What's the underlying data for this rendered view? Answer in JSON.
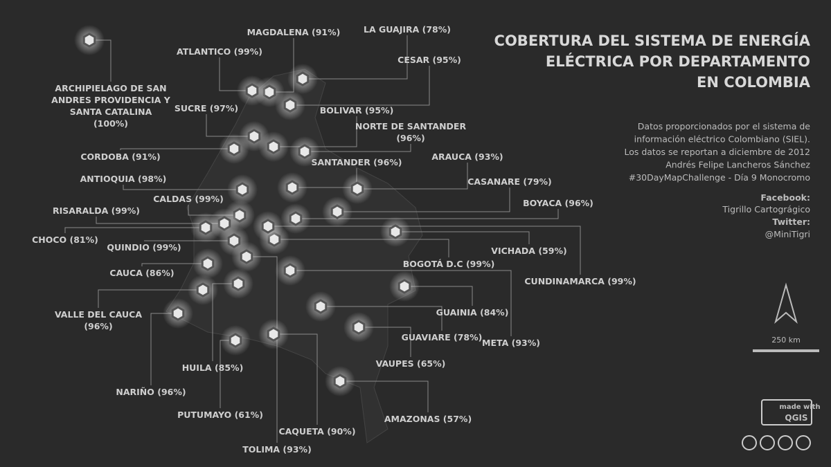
{
  "header": {
    "title_lines": [
      "COBERTURA DEL SISTEMA DE ENERGÍA",
      "ELÉCTRICA POR DEPARTAMENTO",
      "EN COLOMBIA"
    ],
    "credits": [
      "Datos proporcionados por el sistema de",
      "información eléctrico Colombiano (SIEL).",
      "Los datos se reportan a diciembre de 2012",
      "Andrés Felipe Lancheros Sánchez",
      "#30DayMapChallenge - Día 9 Monocromo"
    ],
    "facebook_label": "Facebook:",
    "facebook": "Tigrillo Cartográgico",
    "twitter_label": "Twitter:",
    "twitter": "@MiniTigri"
  },
  "scale_bar": "250 km",
  "badge": {
    "made_with": "made with",
    "qgis": "QGIS"
  },
  "departments": [
    {
      "lines": [
        "ARCHIPIELAGO DE SAN",
        "ANDRES PROVIDENCIA Y",
        "SANTA CATALINA",
        "(100%)"
      ]
    },
    {
      "lines": [
        "MAGDALENA (91%)"
      ]
    },
    {
      "lines": [
        "LA GUAJIRA (78%)"
      ]
    },
    {
      "lines": [
        "ATLANTICO (99%)"
      ]
    },
    {
      "lines": [
        "CESAR (95%)"
      ]
    },
    {
      "lines": [
        "SUCRE (97%)"
      ]
    },
    {
      "lines": [
        "BOLIVAR (95%)"
      ]
    },
    {
      "lines": [
        "NORTE DE SANTANDER",
        "(96%)"
      ]
    },
    {
      "lines": [
        "CORDOBA (91%)"
      ]
    },
    {
      "lines": [
        "SANTANDER (96%)"
      ]
    },
    {
      "lines": [
        "ARAUCA (93%)"
      ]
    },
    {
      "lines": [
        "ANTIOQUIA (98%)"
      ]
    },
    {
      "lines": [
        "CASANARE (79%)"
      ]
    },
    {
      "lines": [
        "CALDAS (99%)"
      ]
    },
    {
      "lines": [
        "BOYACA (96%)"
      ]
    },
    {
      "lines": [
        "RISARALDA (99%)"
      ]
    },
    {
      "lines": [
        "CHOCO (81%)"
      ]
    },
    {
      "lines": [
        "QUINDIO (99%)"
      ]
    },
    {
      "lines": [
        "VICHADA (59%)"
      ]
    },
    {
      "lines": [
        "BOGOTÁ D.C (99%)"
      ]
    },
    {
      "lines": [
        "CAUCA (86%)"
      ]
    },
    {
      "lines": [
        "CUNDINAMARCA (99%)"
      ]
    },
    {
      "lines": [
        "VALLE DEL CAUCA",
        "(96%)"
      ]
    },
    {
      "lines": [
        "GUAINIA (84%)"
      ]
    },
    {
      "lines": [
        "META (93%)"
      ]
    },
    {
      "lines": [
        "GUAVIARE (78%)"
      ]
    },
    {
      "lines": [
        "VAUPES (65%)"
      ]
    },
    {
      "lines": [
        "HUILA (85%)"
      ]
    },
    {
      "lines": [
        "NARIÑO (96%)"
      ]
    },
    {
      "lines": [
        "PUTUMAYO (61%)"
      ]
    },
    {
      "lines": [
        "CAQUETA (90%)"
      ]
    },
    {
      "lines": [
        "AMAZONAS (57%)"
      ]
    },
    {
      "lines": [
        "TOLIMA (93%)"
      ]
    }
  ]
}
